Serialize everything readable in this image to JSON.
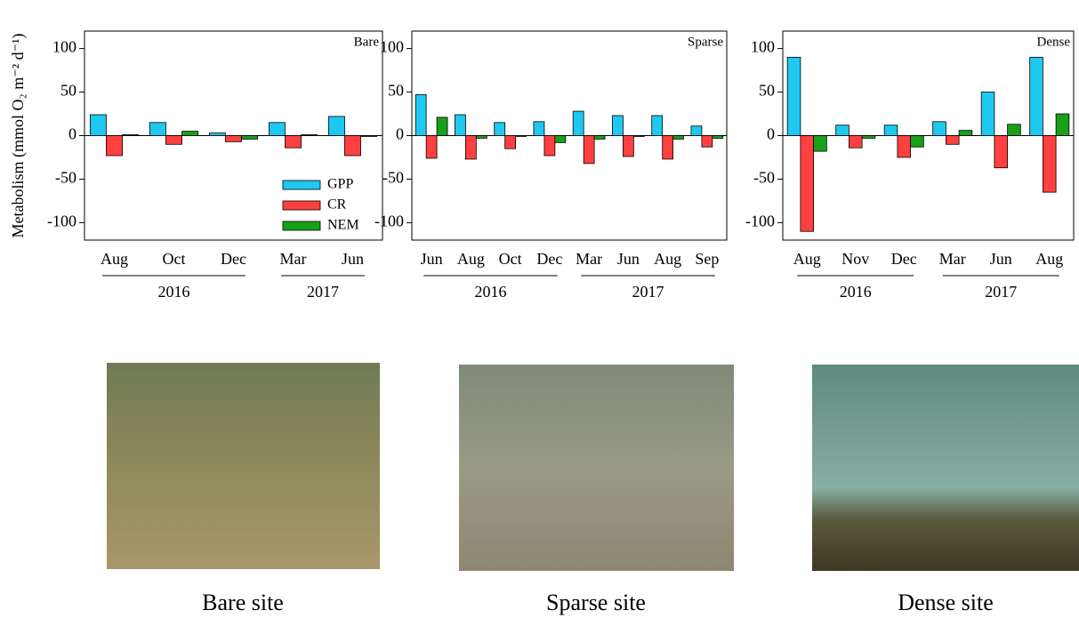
{
  "chart_data": [
    {
      "type": "bar",
      "label": "Bare",
      "ylabel": "Metabolism (mmol O₂ m⁻² d⁻¹)",
      "categories": [
        "Aug",
        "Oct",
        "Dec",
        "Mar",
        "Jun"
      ],
      "groups": [
        {
          "label": "2016",
          "first": 0,
          "last": 2
        },
        {
          "label": "2017",
          "first": 3,
          "last": 4
        }
      ],
      "series": [
        {
          "name": "GPP",
          "color": "#1ec8f0",
          "values": [
            24,
            15,
            3,
            15,
            22
          ]
        },
        {
          "name": "CR",
          "color": "#ff4040",
          "values": [
            -23,
            -10,
            -7,
            -14,
            -23
          ]
        },
        {
          "name": "NEM",
          "color": "#18a018",
          "values": [
            1,
            5,
            -4,
            1,
            -1
          ]
        }
      ],
      "legend": "lower right",
      "ylim": [
        -120,
        120
      ],
      "yticks": [
        -100,
        -50,
        0,
        50,
        100
      ]
    },
    {
      "type": "bar",
      "label": "Sparse",
      "categories": [
        "Jun",
        "Aug",
        "Oct",
        "Dec",
        "Mar",
        "Jun",
        "Aug",
        "Sep"
      ],
      "groups": [
        {
          "label": "2016",
          "first": 0,
          "last": 3
        },
        {
          "label": "2017",
          "first": 4,
          "last": 7
        }
      ],
      "series": [
        {
          "color": "#1ec8f0",
          "values": [
            47,
            24,
            15,
            16,
            28,
            23,
            23,
            11
          ]
        },
        {
          "color": "#ff4040",
          "values": [
            -26,
            -27,
            -15,
            -23,
            -32,
            -24,
            -27,
            -13
          ]
        },
        {
          "color": "#18a018",
          "values": [
            21,
            -3,
            -1,
            -8,
            -4,
            -1,
            -4,
            -3
          ]
        }
      ],
      "ylim": [
        -120,
        120
      ],
      "yticks": [
        -100,
        -50,
        0,
        50,
        100
      ]
    },
    {
      "type": "bar",
      "label": "Dense",
      "categories": [
        "Aug",
        "Nov",
        "Dec",
        "Mar",
        "Jun",
        "Aug"
      ],
      "groups": [
        {
          "label": "2016",
          "first": 0,
          "last": 2
        },
        {
          "label": "2017",
          "first": 3,
          "last": 5
        }
      ],
      "series": [
        {
          "color": "#1ec8f0",
          "values": [
            90,
            12,
            12,
            16,
            50,
            90
          ]
        },
        {
          "color": "#ff4040",
          "values": [
            -110,
            -14,
            -25,
            -10,
            -37,
            -65
          ]
        },
        {
          "color": "#18a018",
          "values": [
            -18,
            -3,
            -13,
            6,
            13,
            25
          ]
        }
      ],
      "ylim": [
        -120,
        120
      ],
      "yticks": [
        -100,
        -50,
        0,
        50,
        100
      ]
    }
  ],
  "captions": [
    "Bare site",
    "Sparse site",
    "Dense site"
  ]
}
